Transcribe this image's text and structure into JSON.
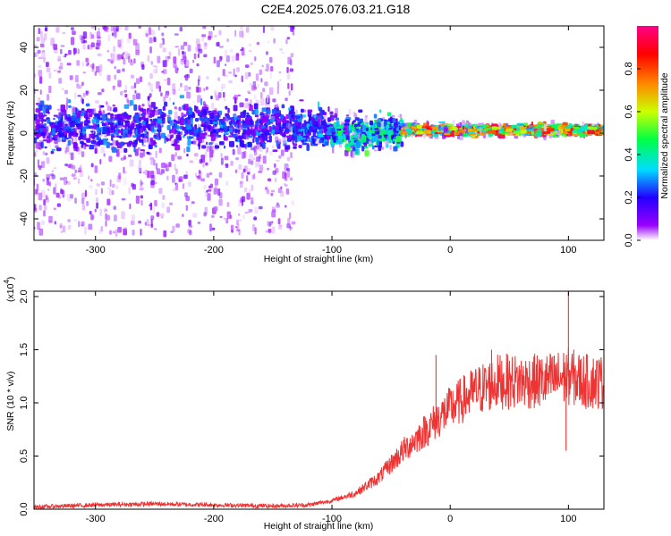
{
  "title": "C2E4.2025.076.03.21.G18",
  "chart_data": [
    {
      "type": "heatmap",
      "xlabel": "Height of straight line (km)",
      "ylabel": "Frequency (Hz)",
      "xlim": [
        -352,
        130
      ],
      "ylim": [
        -50,
        50
      ],
      "xticks": [
        "-300",
        "-200",
        "-100",
        "0",
        "100"
      ],
      "xtick_values": [
        -300,
        -200,
        -100,
        0,
        100
      ],
      "yticks": [
        "-40",
        "-20",
        "0",
        "20",
        "40"
      ],
      "ytick_values": [
        -40,
        -20,
        0,
        20,
        40
      ],
      "colorbar": {
        "label": "Normalized spectral amplitude",
        "range": [
          0,
          1
        ],
        "ticks": [
          "0.0",
          "0.2",
          "0.4",
          "0.6",
          "0.8"
        ],
        "tick_values": [
          0,
          0.2,
          0.4,
          0.6,
          0.8
        ],
        "colors": [
          "#ffffff",
          "#9900ff",
          "#2200ff",
          "#00ddff",
          "#00ff44",
          "#ccff00",
          "#ff8800",
          "#ff0000",
          "#ff0088"
        ]
      },
      "regions": [
        {
          "x": [
            -352,
            -132
          ],
          "freq_center": 3,
          "band_halfwidth": 8,
          "noise_spread": 50,
          "peak_amplitude": 0.35
        },
        {
          "x": [
            -132,
            -100
          ],
          "freq_center": 3,
          "band_halfwidth": 7,
          "noise_spread": 8,
          "peak_amplitude": 0.4
        },
        {
          "x": [
            -100,
            -40
          ],
          "freq_center": 0,
          "band_halfwidth": 6,
          "noise_spread": 10,
          "peak_amplitude": 0.55
        },
        {
          "x": [
            -40,
            130
          ],
          "freq_center": 1.5,
          "band_halfwidth": 2,
          "noise_spread": 3,
          "peak_amplitude": 0.95
        }
      ]
    },
    {
      "type": "line",
      "xlabel": "Height of straight line (km)",
      "ylabel": "SNR (10 * v/v)",
      "y_multiplier": "(x10",
      "y_multiplier_exp": "4",
      "y_multiplier_close": ")",
      "xlim": [
        -352,
        130
      ],
      "ylim": [
        0,
        2.05
      ],
      "xticks": [
        "-300",
        "-200",
        "-100",
        "0",
        "100"
      ],
      "xtick_values": [
        -300,
        -200,
        -100,
        0,
        100
      ],
      "yticks": [
        "0.0",
        "0.5",
        "1.0",
        "1.5",
        "2.0"
      ],
      "ytick_values": [
        0,
        0.5,
        1.0,
        1.5,
        2.0
      ],
      "series_color": "#ee3333",
      "x": [
        -352,
        -300,
        -250,
        -200,
        -150,
        -120,
        -100,
        -80,
        -60,
        -40,
        -20,
        0,
        20,
        40,
        60,
        80,
        100,
        115,
        130
      ],
      "y": [
        0.02,
        0.04,
        0.05,
        0.04,
        0.03,
        0.04,
        0.08,
        0.15,
        0.3,
        0.55,
        0.75,
        0.95,
        1.1,
        1.2,
        1.2,
        1.2,
        1.25,
        1.2,
        1.2
      ],
      "spikes": [
        {
          "x": -12,
          "y": 1.45
        },
        {
          "x": 35,
          "y": 1.5
        },
        {
          "x": 100,
          "y": 2.05
        },
        {
          "x": 98,
          "y": 0.55
        }
      ]
    }
  ]
}
